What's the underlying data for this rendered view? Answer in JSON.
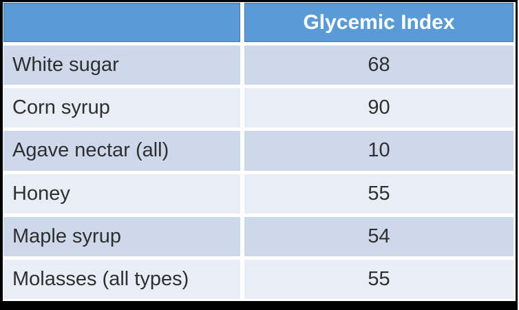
{
  "table": {
    "header": {
      "col1": "",
      "col2": "Glycemic Index"
    },
    "rows": [
      {
        "label": "White sugar",
        "value": "68"
      },
      {
        "label": "Corn syrup",
        "value": "90"
      },
      {
        "label": "Agave nectar (all)",
        "value": "10"
      },
      {
        "label": "Honey",
        "value": "55"
      },
      {
        "label": "Maple syrup",
        "value": "54"
      },
      {
        "label": "Molasses (all types)",
        "value": "55"
      }
    ]
  },
  "chart_data": {
    "type": "table",
    "title": "Glycemic Index",
    "columns": [
      "",
      "Glycemic Index"
    ],
    "categories": [
      "White sugar",
      "Corn syrup",
      "Agave nectar (all)",
      "Honey",
      "Maple syrup",
      "Molasses (all types)"
    ],
    "values": [
      68,
      90,
      10,
      55,
      54,
      55
    ]
  },
  "colors": {
    "header_bg": "#5B9BD5",
    "header_border": "#4472A4",
    "header_text": "#FFFFFF",
    "row_odd_bg": "#CDD9EB",
    "row_even_bg": "#E9EDF6",
    "body_text": "#2F2F2F",
    "frame": "#000000",
    "gap": "#FFFFFF"
  }
}
